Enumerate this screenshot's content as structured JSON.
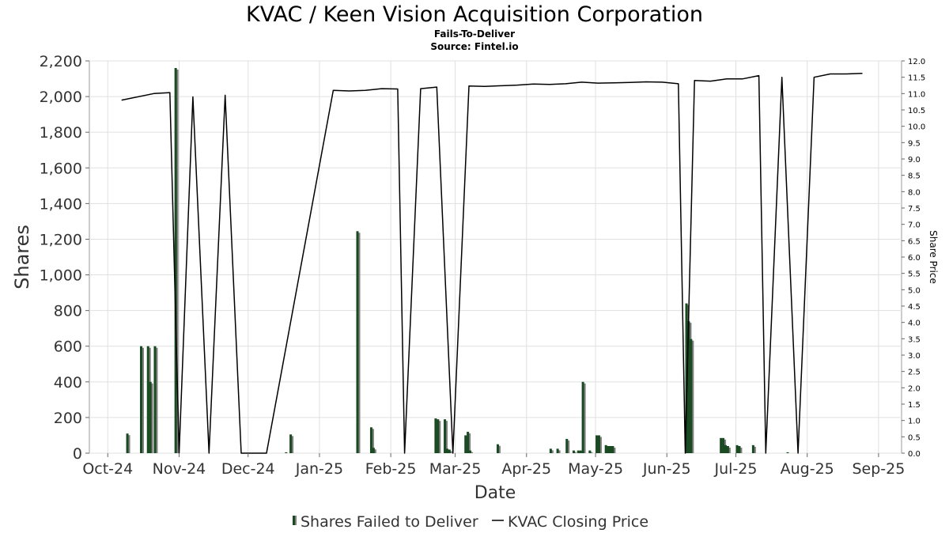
{
  "title": "KVAC / Keen Vision Acquisition Corporation",
  "subtitle": "Fails-To-Deliver",
  "source": "Source: Fintel.io",
  "chart_data": {
    "type": "bar",
    "xlabel": "Date",
    "ylabel": "Shares",
    "y2label": "Share Price",
    "ylim": [
      0,
      2200
    ],
    "y2lim": [
      0,
      12
    ],
    "yticks": [
      "0",
      "200",
      "400",
      "600",
      "800",
      "1,000",
      "1,200",
      "1,400",
      "1,600",
      "1,800",
      "2,000",
      "2,200"
    ],
    "y2ticks": [
      "0.0",
      "0.5",
      "1.0",
      "1.5",
      "2.0",
      "2.5",
      "3.0",
      "3.5",
      "4.0",
      "4.5",
      "5.0",
      "5.5",
      "6.0",
      "6.5",
      "7.0",
      "7.5",
      "8.0",
      "8.5",
      "9.0",
      "9.5",
      "10.0",
      "10.5",
      "11.0",
      "11.5",
      "12.0"
    ],
    "xticks": [
      "Oct-24",
      "Nov-24",
      "Dec-24",
      "Jan-25",
      "Feb-25",
      "Mar-25",
      "Apr-25",
      "May-25",
      "Jun-25",
      "Jul-25",
      "Aug-25",
      "Sep-25"
    ],
    "grid": true,
    "legend_position": "bottom-center",
    "legend": [
      "Shares Failed to Deliver",
      "KVAC Closing Price"
    ],
    "colors": {
      "bar": "#1a4a22",
      "bar_shadow": "#808080",
      "line": "#000000",
      "grid": "#e0e0e0"
    },
    "series": [
      {
        "name": "Shares Failed to Deliver",
        "type": "bar",
        "points": [
          {
            "x": "2024-10-09",
            "y": 110
          },
          {
            "x": "2024-10-15",
            "y": 600
          },
          {
            "x": "2024-10-18",
            "y": 600
          },
          {
            "x": "2024-10-19",
            "y": 400
          },
          {
            "x": "2024-10-21",
            "y": 600
          },
          {
            "x": "2024-10-30",
            "y": 2160
          },
          {
            "x": "2024-12-17",
            "y": 5
          },
          {
            "x": "2024-12-19",
            "y": 105
          },
          {
            "x": "2025-01-17",
            "y": 1245
          },
          {
            "x": "2025-01-23",
            "y": 145
          },
          {
            "x": "2025-01-24",
            "y": 30
          },
          {
            "x": "2025-02-20",
            "y": 195
          },
          {
            "x": "2025-02-21",
            "y": 190
          },
          {
            "x": "2025-02-24",
            "y": 190
          },
          {
            "x": "2025-02-25",
            "y": 25
          },
          {
            "x": "2025-02-26",
            "y": 20
          },
          {
            "x": "2025-03-05",
            "y": 100
          },
          {
            "x": "2025-03-06",
            "y": 120
          },
          {
            "x": "2025-03-07",
            "y": 15
          },
          {
            "x": "2025-03-19",
            "y": 50
          },
          {
            "x": "2025-04-11",
            "y": 25
          },
          {
            "x": "2025-04-14",
            "y": 25
          },
          {
            "x": "2025-04-18",
            "y": 80
          },
          {
            "x": "2025-04-21",
            "y": 15
          },
          {
            "x": "2025-04-23",
            "y": 15
          },
          {
            "x": "2025-04-24",
            "y": 15
          },
          {
            "x": "2025-04-25",
            "y": 400
          },
          {
            "x": "2025-04-28",
            "y": 15
          },
          {
            "x": "2025-05-01",
            "y": 100
          },
          {
            "x": "2025-05-02",
            "y": 100
          },
          {
            "x": "2025-05-05",
            "y": 45
          },
          {
            "x": "2025-05-06",
            "y": 40
          },
          {
            "x": "2025-05-07",
            "y": 40
          },
          {
            "x": "2025-05-08",
            "y": 40
          },
          {
            "x": "2025-06-09",
            "y": 840
          },
          {
            "x": "2025-06-10",
            "y": 740
          },
          {
            "x": "2025-06-11",
            "y": 640
          },
          {
            "x": "2025-06-24",
            "y": 85
          },
          {
            "x": "2025-06-25",
            "y": 85
          },
          {
            "x": "2025-06-26",
            "y": 45
          },
          {
            "x": "2025-06-27",
            "y": 40
          },
          {
            "x": "2025-07-01",
            "y": 45
          },
          {
            "x": "2025-07-02",
            "y": 40
          },
          {
            "x": "2025-07-08",
            "y": 45
          },
          {
            "x": "2025-07-23",
            "y": 5
          }
        ]
      },
      {
        "name": "KVAC Closing Price",
        "type": "line",
        "axis": "right",
        "points": [
          {
            "x": "2024-10-07",
            "y": 10.8
          },
          {
            "x": "2024-10-21",
            "y": 11.0
          },
          {
            "x": "2024-10-28",
            "y": 11.03
          },
          {
            "x": "2024-11-01",
            "y": 0
          },
          {
            "x": "2024-11-07",
            "y": 10.9
          },
          {
            "x": "2024-11-14",
            "y": 0
          },
          {
            "x": "2024-11-21",
            "y": 10.95
          },
          {
            "x": "2024-11-28",
            "y": 0
          },
          {
            "x": "2024-12-09",
            "y": 0
          },
          {
            "x": "2025-01-07",
            "y": 11.1
          },
          {
            "x": "2025-01-14",
            "y": 11.08
          },
          {
            "x": "2025-01-21",
            "y": 11.1
          },
          {
            "x": "2025-01-28",
            "y": 11.15
          },
          {
            "x": "2025-02-04",
            "y": 11.14
          },
          {
            "x": "2025-02-07",
            "y": 0
          },
          {
            "x": "2025-02-14",
            "y": 11.15
          },
          {
            "x": "2025-02-21",
            "y": 11.2
          },
          {
            "x": "2025-02-28",
            "y": 0
          },
          {
            "x": "2025-03-07",
            "y": 11.23
          },
          {
            "x": "2025-03-14",
            "y": 11.22
          },
          {
            "x": "2025-03-21",
            "y": 11.24
          },
          {
            "x": "2025-03-28",
            "y": 11.26
          },
          {
            "x": "2025-04-04",
            "y": 11.29
          },
          {
            "x": "2025-04-11",
            "y": 11.28
          },
          {
            "x": "2025-04-18",
            "y": 11.3
          },
          {
            "x": "2025-04-25",
            "y": 11.35
          },
          {
            "x": "2025-05-02",
            "y": 11.32
          },
          {
            "x": "2025-05-09",
            "y": 11.33
          },
          {
            "x": "2025-05-16",
            "y": 11.34
          },
          {
            "x": "2025-05-23",
            "y": 11.36
          },
          {
            "x": "2025-05-30",
            "y": 11.35
          },
          {
            "x": "2025-06-06",
            "y": 11.3
          },
          {
            "x": "2025-06-09",
            "y": 0
          },
          {
            "x": "2025-06-13",
            "y": 11.4
          },
          {
            "x": "2025-06-20",
            "y": 11.38
          },
          {
            "x": "2025-06-27",
            "y": 11.45
          },
          {
            "x": "2025-07-04",
            "y": 11.45
          },
          {
            "x": "2025-07-11",
            "y": 11.55
          },
          {
            "x": "2025-07-14",
            "y": 0
          },
          {
            "x": "2025-07-21",
            "y": 11.5
          },
          {
            "x": "2025-07-28",
            "y": 0
          },
          {
            "x": "2025-08-04",
            "y": 11.5
          },
          {
            "x": "2025-08-11",
            "y": 11.6
          },
          {
            "x": "2025-08-18",
            "y": 11.6
          },
          {
            "x": "2025-08-25",
            "y": 11.62
          }
        ]
      }
    ]
  }
}
